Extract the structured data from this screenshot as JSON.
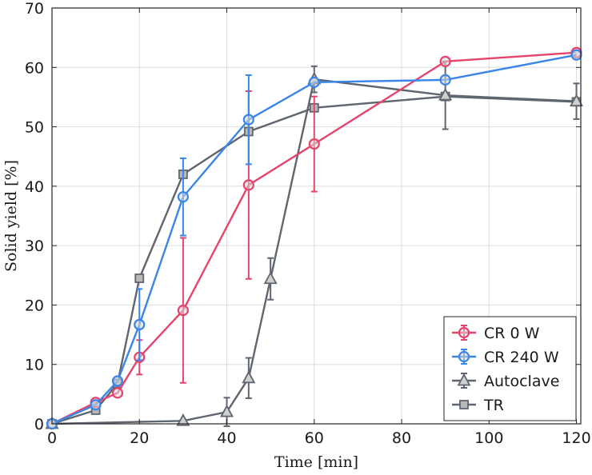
{
  "chart_data": {
    "type": "line",
    "xlabel": "Time [min]",
    "ylabel": "Solid yield [%]",
    "xlim": [
      0,
      121
    ],
    "ylim": [
      0,
      70
    ],
    "xticks": [
      "0",
      "20",
      "40",
      "60",
      "80",
      "100",
      "120"
    ],
    "yticks": [
      "0",
      "10",
      "20",
      "30",
      "40",
      "50",
      "60",
      "70"
    ],
    "grid": true,
    "legend_position": "bottom-right",
    "series": [
      {
        "name": "CR 0 W",
        "color": "#e8436b",
        "marker": "circle",
        "error_bars": true,
        "x": [
          0,
          10,
          15,
          20,
          30,
          45,
          60,
          90,
          120
        ],
        "y": [
          0,
          3.6,
          5.2,
          11.2,
          19.1,
          40.2,
          47.1,
          61.0,
          62.5
        ],
        "err": [
          0,
          0,
          0,
          2.9,
          12.2,
          15.8,
          8.0,
          0,
          0
        ]
      },
      {
        "name": "CR 240 W",
        "color": "#3a86e8",
        "marker": "circle",
        "error_bars": true,
        "x": [
          0,
          10,
          15,
          20,
          30,
          45,
          60,
          90,
          120
        ],
        "y": [
          0,
          3.2,
          7.2,
          16.7,
          38.2,
          51.2,
          57.5,
          57.9,
          62.1
        ],
        "err": [
          0,
          0,
          0,
          6.0,
          6.5,
          7.5,
          0,
          0,
          0
        ]
      },
      {
        "name": "Autoclave",
        "color": "#5f6670",
        "marker": "triangle",
        "error_bars": true,
        "x": [
          0,
          30,
          40,
          45,
          50,
          60,
          90,
          120
        ],
        "y": [
          0,
          0.5,
          2.0,
          7.7,
          24.4,
          58.0,
          55.3,
          54.3
        ],
        "err": [
          0,
          0,
          2.4,
          3.4,
          3.5,
          2.2,
          5.7,
          3.0
        ]
      },
      {
        "name": "TR",
        "color": "#5f6670",
        "marker": "square",
        "error_bars": false,
        "x": [
          0,
          10,
          15,
          20,
          30,
          45,
          60,
          90,
          120
        ],
        "y": [
          0,
          2.3,
          6.8,
          24.5,
          42.0,
          49.2,
          53.2,
          55.1,
          54.2
        ],
        "err": []
      }
    ]
  }
}
